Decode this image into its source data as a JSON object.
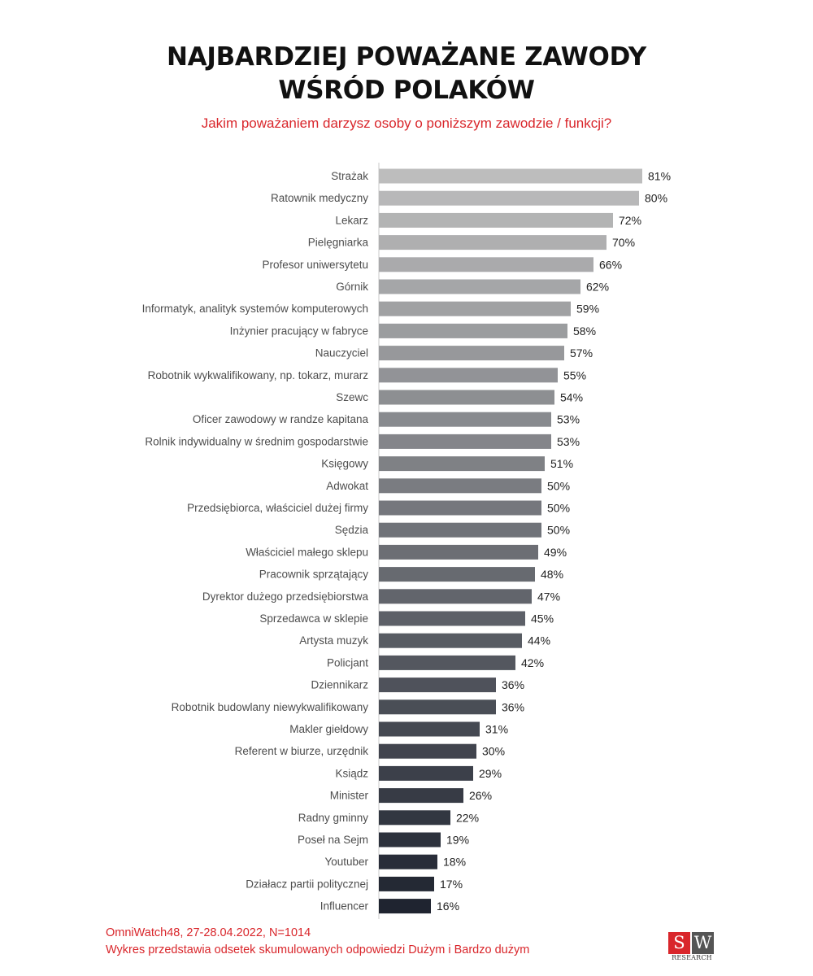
{
  "title_line1": "NAJBARDZIEJ POWAŻANE ZAWODY",
  "title_line2": "WŚRÓD POLAKÓW",
  "subtitle": "Jakim poważaniem darzysz osoby o poniższym zawodzie / funkcji?",
  "footer_line1": "OmniWatch48, 27-28.04.2022, N=1014",
  "footer_line2": "Wykres przedstawia odsetek skumulowanych odpowiedzi Dużym i Bardzo dużym",
  "logo": {
    "letter1": "S",
    "letter2": "W",
    "text": "RESEARCH"
  },
  "colors": {
    "accent": "#d9262b",
    "bar_light": "#bdbdbd",
    "bar_dark": "#1f2430"
  },
  "chart_data": {
    "type": "bar",
    "orientation": "horizontal",
    "value_suffix": "%",
    "categories": [
      "Strażak",
      "Ratownik medyczny",
      "Lekarz",
      "Pielęgniarka",
      "Profesor uniwersytetu",
      "Górnik",
      "Informatyk, analityk systemów komputerowych",
      "Inżynier pracujący w fabryce",
      "Nauczyciel",
      "Robotnik wykwalifikowany, np. tokarz, murarz",
      "Szewc",
      "Oficer zawodowy w randze kapitana",
      "Rolnik indywidualny w średnim gospodarstwie",
      "Księgowy",
      "Adwokat",
      "Przedsiębiorca, właściciel dużej firmy",
      "Sędzia",
      "Właściciel małego sklepu",
      "Pracownik sprzątający",
      "Dyrektor dużego przedsiębiorstwa",
      "Sprzedawca w sklepie",
      "Artysta muzyk",
      "Policjant",
      "Dziennikarz",
      "Robotnik budowlany niewykwalifikowany",
      "Makler giełdowy",
      "Referent w biurze, urzędnik",
      "Ksiądz",
      "Minister",
      "Radny gminny",
      "Poseł na Sejm",
      "Youtuber",
      "Działacz partii politycznej",
      "Influencer"
    ],
    "values": [
      81,
      80,
      72,
      70,
      66,
      62,
      59,
      58,
      57,
      55,
      54,
      53,
      53,
      51,
      50,
      50,
      50,
      49,
      48,
      47,
      45,
      44,
      42,
      36,
      36,
      31,
      30,
      29,
      26,
      22,
      19,
      18,
      17,
      16
    ],
    "xlim": [
      0,
      100
    ],
    "grid": false,
    "legend": "none"
  }
}
